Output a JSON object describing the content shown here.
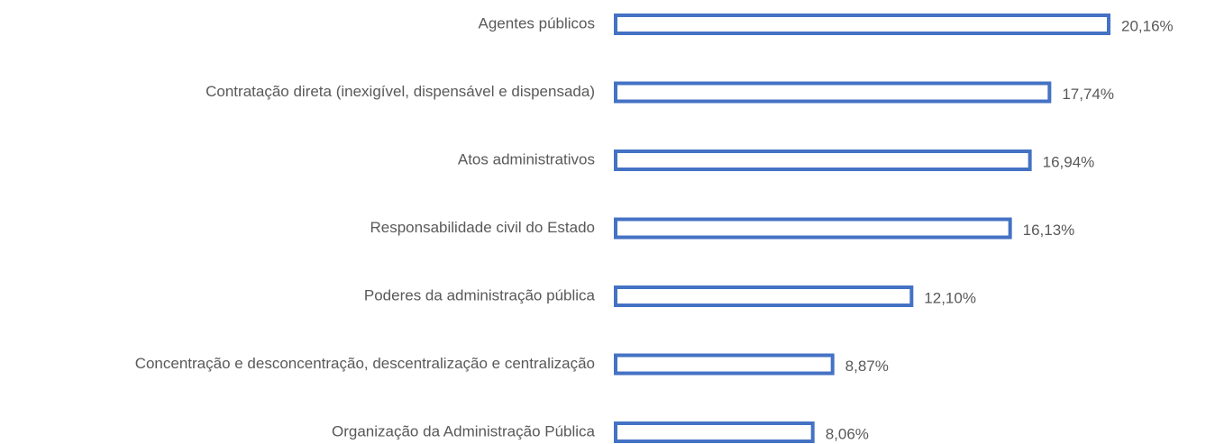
{
  "chart_data": {
    "type": "hbar",
    "categories": [
      "Agentes públicos",
      "Contratação direta (inexigível, dispensável e dispensada)",
      "Atos administrativos",
      "Responsabilidade civil do Estado",
      "Poderes da administração pública",
      "Concentração e desconcentração, descentralização e centralização",
      "Organização da Administração Pública"
    ],
    "values": [
      20.16,
      17.74,
      16.94,
      16.13,
      12.1,
      8.87,
      8.06
    ],
    "value_labels": [
      "20,16%",
      "17,74%",
      "16,94%",
      "16,13%",
      "12,10%",
      "8,87%",
      "8,06%"
    ],
    "color": "#4472c4"
  }
}
